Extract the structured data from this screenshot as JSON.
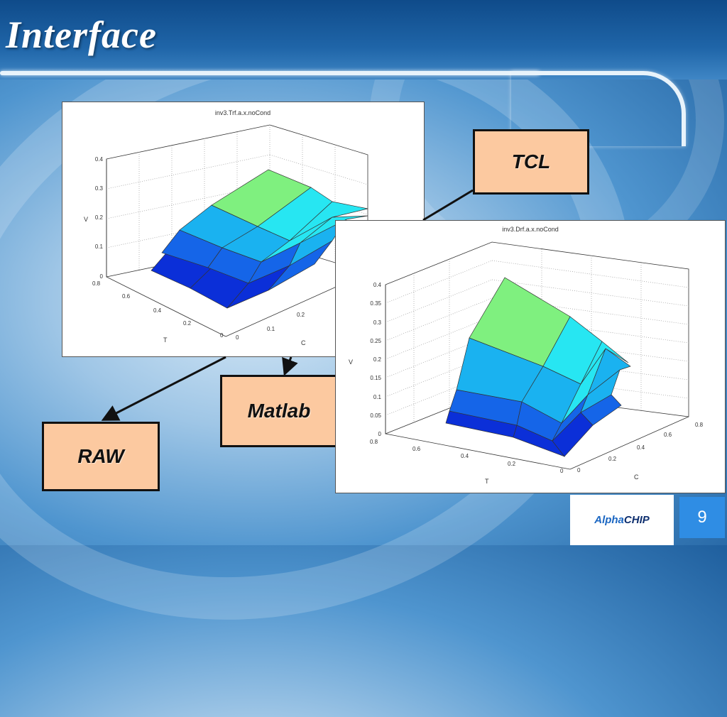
{
  "slide": {
    "title": "Interface",
    "page_number": "9",
    "logo": {
      "part1": "Alpha",
      "part2": "CHIP"
    }
  },
  "labels": {
    "tcl": "TCL",
    "matlab": "Matlab",
    "raw": "RAW"
  },
  "colors": {
    "label_fill": "#fcc9a0",
    "surface_green": "#7ff07f",
    "surface_cyan": "#27e6f2",
    "surface_lightblue": "#1ab2f0",
    "surface_blue": "#1565e8",
    "surface_darkblue": "#0b2fd8",
    "page_badge": "#2f8de4"
  },
  "chart_data": [
    {
      "type": "surface",
      "title": "inv3.Trf.a.x.noCond",
      "xlabel": "T",
      "ylabel": "C",
      "zlabel": "V",
      "x_ticks": [
        "0.8",
        "0.6",
        "0.4",
        "0.2",
        "0"
      ],
      "y_ticks": [
        "0",
        "0.1",
        "0.2"
      ],
      "z_ticks": [
        "0.4",
        "0.3",
        "0.2",
        "0.1",
        "0"
      ],
      "zlim": [
        0,
        0.4
      ],
      "grid": true
    },
    {
      "type": "surface",
      "title": "inv3.Drf.a.x.noCond",
      "xlabel": "T",
      "ylabel": "C",
      "zlabel": "V",
      "x_ticks": [
        "0.8",
        "0.6",
        "0.4",
        "0.2",
        "0"
      ],
      "y_ticks": [
        "0",
        "0.2",
        "0.4",
        "0.6",
        "0.8"
      ],
      "z_ticks": [
        "0.4",
        "0.35",
        "0.3",
        "0.25",
        "0.2",
        "0.15",
        "0.1",
        "0.05",
        "0"
      ],
      "zlim": [
        0,
        0.4
      ],
      "grid": true
    }
  ]
}
